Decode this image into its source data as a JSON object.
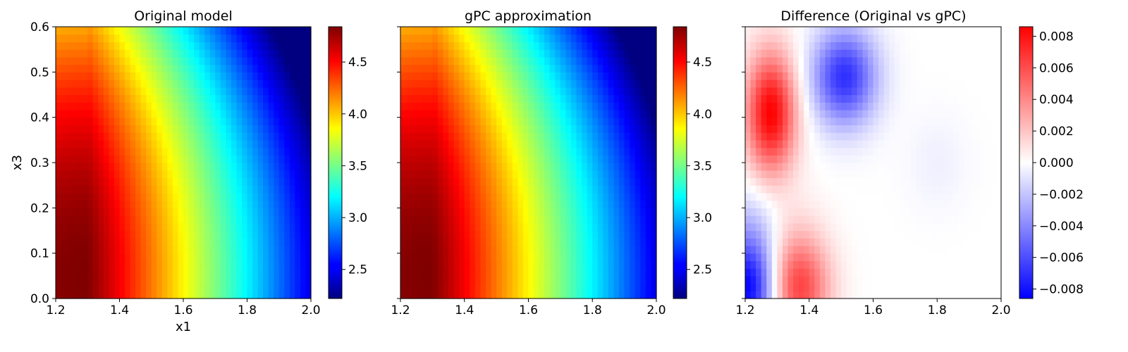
{
  "chart_data": [
    {
      "type": "heatmap",
      "title": "Original model",
      "xlabel": "x1",
      "ylabel": "x3",
      "xlim": [
        1.2,
        2.0
      ],
      "ylim": [
        0.0,
        0.6
      ],
      "xticks": [
        "1.2",
        "1.4",
        "1.6",
        "1.8",
        "2.0"
      ],
      "yticks": [
        "0.0",
        "0.1",
        "0.2",
        "0.3",
        "0.4",
        "0.5",
        "0.6"
      ],
      "colormap": "jet",
      "colorbar": {
        "min": 2.22,
        "max": 4.84,
        "ticks": [
          "2.5",
          "3.0",
          "3.5",
          "4.0",
          "4.5"
        ]
      },
      "field": {
        "peak_value": 4.84,
        "peak_x1": 1.3,
        "peak_x3": 0.05,
        "min_value": 2.22,
        "min_x1": 2.0,
        "min_x3": 0.6
      }
    },
    {
      "type": "heatmap",
      "title": "gPC approximation",
      "xlabel": "",
      "ylabel": "",
      "xlim": [
        1.2,
        2.0
      ],
      "ylim": [
        0.0,
        0.6
      ],
      "xticks": [
        "1.2",
        "1.4",
        "1.6",
        "1.8",
        "2.0"
      ],
      "yticks": [],
      "colormap": "jet",
      "colorbar": {
        "min": 2.22,
        "max": 4.84,
        "ticks": [
          "2.5",
          "3.0",
          "3.5",
          "4.0",
          "4.5"
        ]
      },
      "field": {
        "peak_value": 4.84,
        "peak_x1": 1.3,
        "peak_x3": 0.05,
        "min_value": 2.22,
        "min_x1": 2.0,
        "min_x3": 0.6
      }
    },
    {
      "type": "heatmap",
      "title": "Difference (Original vs gPC)",
      "xlabel": "",
      "ylabel": "",
      "xlim": [
        1.2,
        2.0
      ],
      "ylim": [
        0.0,
        0.6
      ],
      "xticks": [
        "1.2",
        "1.4",
        "1.6",
        "1.8",
        "2.0"
      ],
      "yticks": [],
      "colormap": "bwr",
      "colorbar": {
        "min": -0.0086,
        "max": 0.0086,
        "ticks": [
          "−0.008",
          "−0.006",
          "−0.004",
          "−0.002",
          "0.000",
          "0.002",
          "0.004",
          "0.006",
          "0.008"
        ]
      },
      "features": [
        {
          "x1": 1.28,
          "x3": 0.41,
          "value": 0.0086
        },
        {
          "x1": 1.51,
          "x3": 0.49,
          "value": -0.007
        },
        {
          "x1": 1.21,
          "x3": 0.02,
          "value": -0.0086
        },
        {
          "x1": 1.36,
          "x3": 0.02,
          "value": 0.0065
        },
        {
          "x1": 1.35,
          "x3": 0.12,
          "value": 0.0012
        },
        {
          "x1": 1.22,
          "x3": 0.15,
          "value": -0.002
        },
        {
          "x1": 1.8,
          "x3": 0.3,
          "value": -0.0005
        }
      ]
    }
  ]
}
